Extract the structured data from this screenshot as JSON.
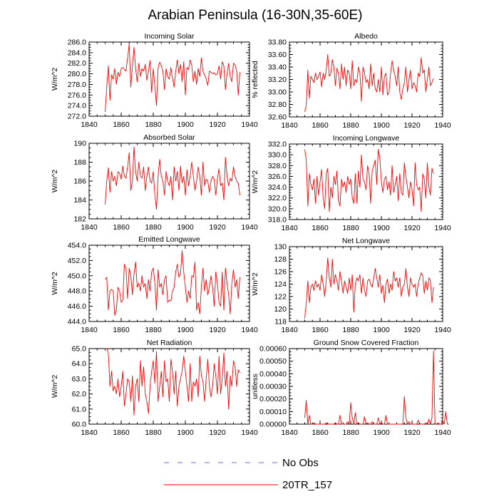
{
  "title": "Arabian Peninsula (16-30N,35-60E)",
  "legend": [
    {
      "label": "No Obs",
      "color": "#6b6bc8",
      "dash": true
    },
    {
      "label": "20TR_157",
      "color": "#ff0000",
      "dash": false
    }
  ],
  "chart_data": [
    {
      "type": "line",
      "title": "Incoming Solar",
      "ylabel": "W/m^2",
      "xlabel": "",
      "xlim": [
        1840,
        1940
      ],
      "ylim": [
        272.0,
        286.0
      ],
      "xticks": [
        1840,
        1860,
        1880,
        1900,
        1920,
        1940
      ],
      "yticks": [
        "272.0",
        "274.0",
        "276.0",
        "278.0",
        "280.0",
        "282.0",
        "284.0",
        "286.0"
      ],
      "series": [
        {
          "name": "20TR_157",
          "x_start": 1850,
          "values": [
            272.8,
            277.5,
            281.5,
            275.0,
            279.8,
            279.0,
            281.0,
            278.0,
            280.3,
            279.5,
            281.0,
            281.2,
            280.8,
            280.5,
            283.0,
            285.6,
            277.5,
            281.5,
            285.0,
            281.0,
            278.5,
            282.0,
            279.5,
            281.0,
            280.5,
            281.8,
            278.8,
            280.5,
            282.5,
            276.5,
            281.0,
            277.5,
            274.0,
            281.0,
            282.2,
            281.5,
            280.5,
            277.0,
            281.0,
            279.5,
            279.0,
            281.2,
            279.2,
            277.5,
            280.5,
            282.6,
            280.0,
            281.8,
            278.5,
            282.3,
            276.0,
            281.2,
            280.8,
            282.6,
            281.6,
            278.5,
            280.5,
            278.0,
            281.0,
            279.5,
            283.0,
            280.5,
            279.8,
            279.0,
            277.8,
            280.5,
            280.3,
            280.0,
            280.2,
            279.8,
            280.0,
            281.5,
            279.0,
            282.3,
            281.5,
            277.0,
            280.0,
            282.0,
            279.5,
            278.5,
            282.0,
            281.7,
            280.5,
            276.0,
            280.3
          ]
        }
      ]
    },
    {
      "type": "line",
      "title": "Albedo",
      "ylabel": "% reflected",
      "xlabel": "",
      "xlim": [
        1840,
        1940
      ],
      "ylim": [
        32.6,
        33.8
      ],
      "xticks": [
        1840,
        1860,
        1880,
        1900,
        1920,
        1940
      ],
      "yticks": [
        "32.60",
        "32.80",
        "33.00",
        "33.20",
        "33.40",
        "33.60",
        "33.80"
      ],
      "series": [
        {
          "name": "20TR_157",
          "x_start": 1850,
          "values": [
            32.68,
            32.78,
            33.35,
            32.9,
            33.25,
            33.2,
            33.15,
            33.3,
            33.2,
            33.25,
            33.32,
            33.08,
            33.3,
            33.2,
            33.35,
            33.6,
            33.25,
            33.3,
            33.52,
            33.4,
            33.1,
            33.38,
            33.3,
            33.05,
            33.45,
            33.2,
            33.4,
            33.1,
            33.35,
            33.3,
            33.05,
            33.5,
            33.1,
            33.2,
            33.15,
            33.4,
            33.3,
            32.85,
            33.4,
            33.3,
            33.15,
            33.2,
            33.05,
            33.45,
            33.1,
            33.3,
            33.05,
            33.0,
            33.2,
            33.0,
            33.4,
            32.95,
            33.25,
            33.3,
            32.95,
            33.0,
            33.3,
            33.5,
            33.35,
            33.25,
            33.1,
            33.4,
            33.0,
            32.88,
            33.05,
            33.15,
            33.4,
            33.0,
            33.2,
            33.35,
            33.05,
            33.15,
            33.1,
            33.0,
            33.3,
            33.25,
            33.55,
            33.3,
            33.35,
            33.0,
            33.2,
            33.4,
            33.1,
            33.15,
            33.22
          ]
        }
      ]
    },
    {
      "type": "line",
      "title": "Absorbed Solar",
      "ylabel": "W/m^2",
      "xlabel": "",
      "xlim": [
        1840,
        1940
      ],
      "ylim": [
        182,
        190
      ],
      "xticks": [
        1840,
        1860,
        1880,
        1900,
        1920,
        1940
      ],
      "yticks": [
        "182",
        "184",
        "186",
        "188",
        "190"
      ],
      "series": [
        {
          "name": "20TR_157",
          "x_start": 1850,
          "values": [
            183.5,
            186.0,
            187.4,
            184.8,
            187.0,
            186.0,
            186.5,
            185.5,
            187.0,
            186.8,
            186.2,
            187.6,
            186.5,
            186.3,
            187.5,
            189.0,
            185.0,
            186.0,
            189.6,
            187.0,
            186.0,
            188.0,
            186.5,
            186.3,
            187.5,
            185.0,
            186.5,
            187.5,
            186.0,
            185.8,
            187.0,
            184.5,
            183.0,
            186.5,
            188.3,
            186.5,
            186.0,
            184.5,
            187.0,
            186.0,
            185.5,
            186.5,
            184.0,
            187.5,
            186.0,
            187.0,
            185.0,
            187.6,
            185.8,
            186.5,
            184.5,
            187.2,
            185.5,
            186.5,
            188.0,
            186.5,
            185.0,
            186.0,
            187.5,
            186.5,
            184.5,
            188.0,
            185.5,
            186.2,
            186.0,
            184.8,
            186.0,
            186.5,
            186.2,
            184.5,
            186.3,
            187.3,
            185.5,
            185.8,
            184.0,
            188.5,
            186.5,
            185.5,
            186.3,
            186.0,
            187.5,
            186.5,
            186.0,
            185.8,
            184.5
          ]
        }
      ]
    },
    {
      "type": "line",
      "title": "Incoming Longwave",
      "ylabel": "W/m^2",
      "xlabel": "",
      "xlim": [
        1840,
        1940
      ],
      "ylim": [
        318.0,
        332.0
      ],
      "xticks": [
        1840,
        1860,
        1880,
        1900,
        1920,
        1940
      ],
      "yticks": [
        "318.0",
        "320.0",
        "322.0",
        "324.0",
        "326.0",
        "328.0",
        "330.0",
        "332.0"
      ],
      "series": [
        {
          "name": "20TR_157",
          "x_start": 1850,
          "values": [
            331.0,
            329.0,
            320.5,
            326.5,
            324.5,
            323.5,
            325.5,
            321.0,
            326.0,
            322.5,
            325.0,
            327.3,
            322.0,
            320.0,
            326.5,
            327.5,
            319.5,
            324.0,
            322.0,
            326.0,
            324.5,
            327.0,
            321.5,
            320.5,
            325.5,
            324.0,
            325.0,
            323.0,
            326.0,
            324.5,
            325.5,
            322.0,
            321.0,
            326.5,
            321.0,
            327.0,
            324.0,
            330.0,
            325.5,
            325.0,
            323.5,
            328.0,
            326.5,
            321.0,
            327.0,
            328.0,
            329.0,
            324.5,
            331.0,
            329.5,
            325.0,
            323.0,
            325.5,
            326.0,
            323.5,
            325.0,
            322.5,
            328.0,
            323.0,
            324.5,
            326.0,
            321.5,
            326.5,
            323.0,
            322.5,
            328.5,
            326.0,
            324.0,
            322.0,
            325.0,
            323.5,
            320.5,
            328.5,
            324.5,
            323.5,
            324.0,
            319.5,
            326.5,
            325.5,
            322.0,
            328.5,
            324.0,
            322.5,
            327.5,
            326.5
          ]
        }
      ]
    },
    {
      "type": "line",
      "title": "Emitted Longwave",
      "ylabel": "W/m^2",
      "xlabel": "",
      "xlim": [
        1840,
        1940
      ],
      "ylim": [
        444.0,
        454.0
      ],
      "xticks": [
        1840,
        1860,
        1880,
        1900,
        1920,
        1940
      ],
      "yticks": [
        "444.0",
        "446.0",
        "448.0",
        "450.0",
        "452.0",
        "454.0"
      ],
      "series": [
        {
          "name": "20TR_157",
          "x_start": 1850,
          "values": [
            449.5,
            449.8,
            445.5,
            448.0,
            448.2,
            448.0,
            444.8,
            445.5,
            448.5,
            448.0,
            446.5,
            446.8,
            451.5,
            451.0,
            447.0,
            451.0,
            450.0,
            447.5,
            450.2,
            451.8,
            448.5,
            449.0,
            448.0,
            450.0,
            448.5,
            449.0,
            447.0,
            449.5,
            448.0,
            450.5,
            451.0,
            449.0,
            445.5,
            450.8,
            448.5,
            449.0,
            447.5,
            449.5,
            450.0,
            446.5,
            446.8,
            446.7,
            448.0,
            448.5,
            450.5,
            451.5,
            449.8,
            450.3,
            453.3,
            450.5,
            448.5,
            446.5,
            448.0,
            447.0,
            450.0,
            449.8,
            451.8,
            445.5,
            446.5,
            445.0,
            448.5,
            451.0,
            448.0,
            449.5,
            447.5,
            448.5,
            450.0,
            448.5,
            446.0,
            450.5,
            449.0,
            446.5,
            446.0,
            450.5,
            445.5,
            451.0,
            449.0,
            447.5,
            445.0,
            449.0,
            450.8,
            448.5,
            449.5,
            447.0,
            449.8
          ]
        }
      ]
    },
    {
      "type": "line",
      "title": "Net Longwave",
      "ylabel": "W/m^2",
      "xlabel": "",
      "xlim": [
        1840,
        1940
      ],
      "ylim": [
        118,
        130
      ],
      "xticks": [
        1840,
        1860,
        1880,
        1900,
        1920,
        1940
      ],
      "yticks": [
        "118",
        "120",
        "122",
        "124",
        "126",
        "128",
        "130"
      ],
      "series": [
        {
          "name": "20TR_157",
          "x_start": 1850,
          "values": [
            118.5,
            121.0,
            124.5,
            121.0,
            123.5,
            124.0,
            123.0,
            124.5,
            123.5,
            124.0,
            123.0,
            125.5,
            124.0,
            122.0,
            124.5,
            128.2,
            125.0,
            123.5,
            128.0,
            124.0,
            125.5,
            124.5,
            123.0,
            126.0,
            124.5,
            122.5,
            124.5,
            123.5,
            122.5,
            125.0,
            123.0,
            125.5,
            119.5,
            124.0,
            125.0,
            124.5,
            125.5,
            122.5,
            125.0,
            123.0,
            122.0,
            124.5,
            124.8,
            124.0,
            123.5,
            125.0,
            126.5,
            125.0,
            123.5,
            125.5,
            122.5,
            123.8,
            121.0,
            124.0,
            124.8,
            122.5,
            124.0,
            123.0,
            126.0,
            124.5,
            125.0,
            123.5,
            125.0,
            122.0,
            123.5,
            124.0,
            126.5,
            123.5,
            122.0,
            125.0,
            124.0,
            123.5,
            124.0,
            122.0,
            124.0,
            125.0,
            125.8,
            125.3,
            122.5,
            124.5,
            123.0,
            125.0,
            124.5,
            121.0,
            123.5
          ]
        }
      ]
    },
    {
      "type": "line",
      "title": "Net Radiation",
      "ylabel": "W/m^2",
      "xlabel": "",
      "xlim": [
        1840,
        1940
      ],
      "ylim": [
        60.0,
        65.0
      ],
      "xticks": [
        1840,
        1860,
        1880,
        1900,
        1920,
        1940
      ],
      "yticks": [
        "60.0",
        "61.0",
        "62.0",
        "63.0",
        "64.0",
        "65.0"
      ],
      "series": [
        {
          "name": "20TR_157",
          "x_start": 1850,
          "values": [
            65.0,
            65.0,
            64.7,
            62.5,
            63.5,
            62.2,
            62.5,
            62.0,
            63.0,
            61.8,
            62.5,
            63.5,
            61.2,
            62.0,
            63.0,
            62.8,
            61.5,
            63.2,
            60.6,
            62.5,
            63.0,
            61.5,
            64.2,
            62.5,
            63.8,
            62.0,
            61.5,
            60.7,
            62.5,
            63.5,
            64.2,
            62.7,
            64.8,
            61.5,
            62.5,
            63.5,
            61.8,
            64.2,
            62.8,
            63.0,
            61.5,
            64.3,
            63.5,
            62.0,
            63.5,
            61.2,
            62.5,
            63.0,
            63.5,
            64.5,
            63.5,
            62.5,
            61.5,
            64.0,
            61.5,
            62.8,
            62.5,
            63.0,
            61.8,
            64.5,
            63.2,
            62.8,
            61.5,
            63.0,
            64.3,
            62.5,
            61.8,
            62.5,
            64.0,
            63.2,
            62.0,
            64.5,
            62.0,
            63.0,
            64.7,
            62.5,
            63.5,
            61.0,
            63.2,
            62.5,
            64.2,
            63.8,
            62.5,
            63.6,
            63.4
          ]
        }
      ]
    },
    {
      "type": "line",
      "title": "Ground Snow Covered Fraction",
      "ylabel": "unitless",
      "xlabel": "",
      "xlim": [
        1840,
        1940
      ],
      "ylim": [
        0,
        0.0006
      ],
      "xticks": [
        1840,
        1860,
        1880,
        1900,
        1920,
        1940
      ],
      "yticks": [
        "0.00000",
        "0.00010",
        "0.00020",
        "0.00030",
        "0.00040",
        "0.00050",
        "0.00060"
      ],
      "series": [
        {
          "name": "20TR_157",
          "x_start": 1850,
          "values": [
            5e-05,
            0.00019,
            0.0,
            7e-05,
            0.0,
            0.0,
            1e-05,
            0.0,
            0.0,
            0.0,
            0.0,
            0.0,
            0.0,
            0.0,
            1e-05,
            0.0,
            0.0,
            0.0,
            0.0,
            0.0,
            1e-05,
            0.0,
            0.0,
            7e-05,
            0.0,
            0.0,
            0.0,
            0.0,
            2e-05,
            0.0,
            0.00017,
            5e-05,
            0.0,
            9e-05,
            0.0,
            1e-05,
            0.0,
            0.0,
            0.0,
            6e-05,
            0.0,
            1e-05,
            0.0,
            0.0,
            2e-05,
            0.0,
            0.0,
            0.0,
            5e-05,
            0.0,
            1e-05,
            0.0,
            0.0,
            7e-05,
            0.0,
            0.0,
            0.0,
            0.0,
            0.0,
            0.0,
            0.0,
            0.0,
            0.0,
            0.0,
            0.0,
            0.00022,
            5e-05,
            0.0,
            2e-05,
            0.0,
            0.0,
            0.0,
            0.0,
            0.0,
            3e-05,
            0.0,
            0.0,
            0.0,
            0.0,
            1e-05,
            0.0,
            4e-05,
            0.0,
            5e-05,
            0.00058,
            0.0,
            0.0,
            1e-05,
            0.0,
            0.0,
            3e-05,
            0.0,
            0.0001,
            0.0,
            0.0
          ]
        }
      ]
    }
  ]
}
